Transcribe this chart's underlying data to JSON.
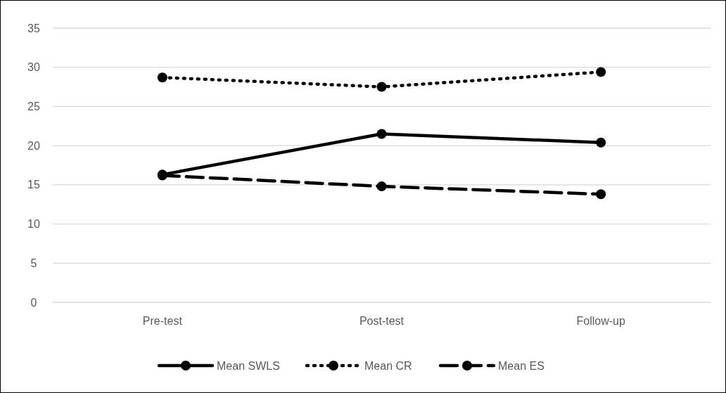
{
  "chart_data": {
    "type": "line",
    "categories": [
      "Pre-test",
      "Post-test",
      "Follow-up"
    ],
    "series": [
      {
        "name": "Mean SWLS",
        "color": "#000000",
        "values": [
          16.3,
          21.5,
          20.4
        ],
        "line_style": "solid"
      },
      {
        "name": "Mean CR",
        "color": "#000000",
        "values": [
          28.7,
          27.5,
          29.4
        ],
        "line_style": "dotted"
      },
      {
        "name": "Mean ES",
        "color": "#000000",
        "values": [
          16.2,
          14.8,
          13.8
        ],
        "line_style": "dashed"
      }
    ],
    "ylim": [
      0,
      35
    ],
    "yticks": [
      0,
      5,
      10,
      15,
      20,
      25,
      30,
      35
    ],
    "grid": "y",
    "legend": "bottom",
    "marker": "circle"
  }
}
